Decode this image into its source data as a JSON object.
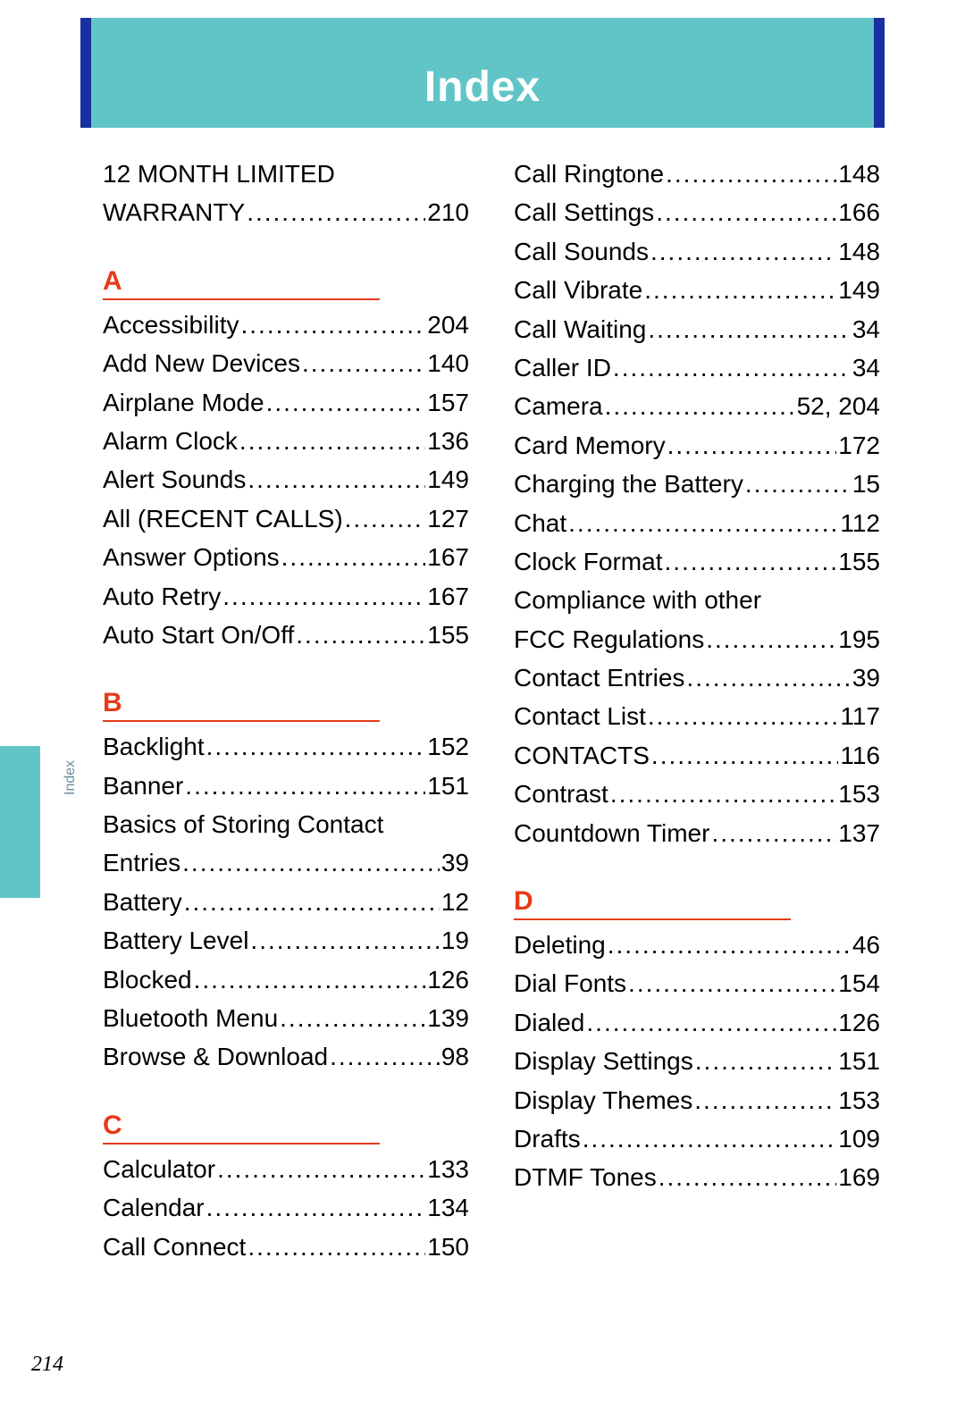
{
  "header": {
    "title": "Index"
  },
  "side": {
    "label": "Index"
  },
  "page_number": "214",
  "colors": {
    "band": "#61c5c8",
    "band_stripe": "#1930a0",
    "letter": "#e63b19",
    "text": "#000000",
    "side_label": "#6a8fa0",
    "background": "#ffffff"
  },
  "columns": [
    {
      "blocks": [
        {
          "type": "entries",
          "items": [
            {
              "term": "12 MONTH LIMITED",
              "wrap": true
            },
            {
              "term": "WARRANTY",
              "page": "210"
            }
          ]
        },
        {
          "type": "letter",
          "label": "A"
        },
        {
          "type": "entries",
          "items": [
            {
              "term": "Accessibility",
              "page": "204"
            },
            {
              "term": "Add New Devices",
              "page": "140"
            },
            {
              "term": "Airplane Mode",
              "page": "157"
            },
            {
              "term": "Alarm Clock",
              "page": "136"
            },
            {
              "term": "Alert Sounds",
              "page": "149"
            },
            {
              "term": "All (RECENT CALLS)",
              "page": "127"
            },
            {
              "term": "Answer Options",
              "page": "167"
            },
            {
              "term": "Auto Retry",
              "page": "167"
            },
            {
              "term": "Auto Start On/Off",
              "page": "155"
            }
          ]
        },
        {
          "type": "letter",
          "label": "B"
        },
        {
          "type": "entries",
          "items": [
            {
              "term": "Backlight",
              "page": "152"
            },
            {
              "term": "Banner",
              "page": "151"
            },
            {
              "term": "Basics of Storing Contact",
              "wrap": true
            },
            {
              "term": "Entries",
              "page": "39"
            },
            {
              "term": "Battery",
              "page": "12"
            },
            {
              "term": "Battery Level",
              "page": "19"
            },
            {
              "term": "Blocked",
              "page": "126"
            },
            {
              "term": "Bluetooth Menu",
              "page": "139"
            },
            {
              "term": "Browse & Download",
              "page": "98"
            }
          ]
        },
        {
          "type": "letter",
          "label": "C"
        },
        {
          "type": "entries",
          "items": [
            {
              "term": "Calculator",
              "page": "133"
            },
            {
              "term": "Calendar",
              "page": "134"
            },
            {
              "term": "Call Connect",
              "page": "150"
            }
          ]
        }
      ]
    },
    {
      "blocks": [
        {
          "type": "entries",
          "items": [
            {
              "term": "Call Ringtone",
              "page": "148"
            },
            {
              "term": "Call Settings",
              "page": "166"
            },
            {
              "term": "Call Sounds",
              "page": "148"
            },
            {
              "term": "Call Vibrate",
              "page": "149"
            },
            {
              "term": "Call Waiting",
              "page": "34"
            },
            {
              "term": "Caller ID",
              "page": "34"
            },
            {
              "term": "Camera",
              "page": "52, 204"
            },
            {
              "term": "Card Memory",
              "page": "172"
            },
            {
              "term": "Charging the Battery",
              "page": "15"
            },
            {
              "term": "Chat",
              "page": "112"
            },
            {
              "term": "Clock Format",
              "page": "155"
            },
            {
              "term": "Compliance with other",
              "wrap": true
            },
            {
              "term": "FCC Regulations",
              "page": "195"
            },
            {
              "term": "Contact Entries",
              "page": "39"
            },
            {
              "term": "Contact List",
              "page": "117"
            },
            {
              "term": "CONTACTS",
              "page": "116"
            },
            {
              "term": "Contrast",
              "page": "153"
            },
            {
              "term": "Countdown Timer",
              "page": "137"
            }
          ]
        },
        {
          "type": "letter",
          "label": "D"
        },
        {
          "type": "entries",
          "items": [
            {
              "term": "Deleting",
              "page": "46"
            },
            {
              "term": "Dial Fonts",
              "page": "154"
            },
            {
              "term": "Dialed",
              "page": "126"
            },
            {
              "term": "Display Settings",
              "page": "151"
            },
            {
              "term": "Display Themes",
              "page": "153"
            },
            {
              "term": "Drafts",
              "page": "109"
            },
            {
              "term": "DTMF Tones",
              "page": "169"
            }
          ]
        }
      ]
    }
  ]
}
